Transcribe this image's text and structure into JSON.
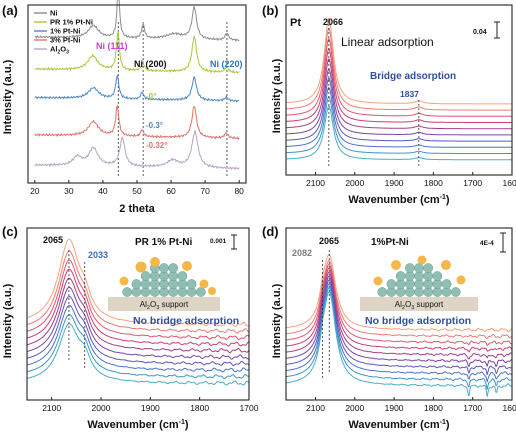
{
  "colors": {
    "ni": "#8c8c8c",
    "pr_pt_ni": "#a4c93a",
    "pt_ni_1": "#4a86c8",
    "pt_ni_3": "#e0726a",
    "al2o3": "#b8a2c6",
    "ni111_label": "#d23bd2",
    "ni220_label": "#2f74c0",
    "bridge_label": "#2f4f9c",
    "peak_label_grey": "#808080",
    "peak_label_blue": "#3a6fc0",
    "particle": "#f3b74a",
    "sphere": "#8fbfb2",
    "support": "#ded5c6",
    "ir_gradient": [
      "#f3a47f",
      "#f07b74",
      "#e0576d",
      "#cb3f73",
      "#a53e89",
      "#7c45a5",
      "#5a57bf",
      "#4c73c8",
      "#3d96c8",
      "#48afc5"
    ]
  },
  "chart_data": [
    {
      "panel": "(a)",
      "type": "line",
      "xlabel": "2 theta",
      "ylabel": "Intensity (a.u.)",
      "xlim": [
        18,
        82
      ],
      "xticks": [
        "20",
        "30",
        "40",
        "50",
        "60",
        "70",
        "80"
      ],
      "legend": [
        "Ni",
        "PR 1% Pt-Ni",
        "1% Pt-Ni",
        "3% Pt-Ni",
        "Al2O3"
      ],
      "legend_position": "top-left",
      "annotations": {
        "ni111": "Ni (111)",
        "ni200": "Ni (200)",
        "ni220": "Ni (220)",
        "shift_pr": "-0°",
        "shift_1": "-0.3°",
        "shift_3": "-0.32°"
      },
      "reference_lines_2theta": [
        44.5,
        51.8,
        76.4
      ],
      "series": [
        {
          "name": "Ni",
          "color_key": "ni",
          "baseline": 0.8,
          "peaks": [
            [
              37.2,
              0.07,
              1.8
            ],
            [
              44.5,
              0.28,
              0.45
            ],
            [
              51.8,
              0.08,
              0.5
            ],
            [
              61.0,
              0.03,
              3
            ],
            [
              66.8,
              0.18,
              0.8
            ],
            [
              76.4,
              0.04,
              0.6
            ]
          ]
        },
        {
          "name": "PR 1% Pt-Ni",
          "color_key": "pr_pt_ni",
          "baseline": 0.62,
          "peaks": [
            [
              37.0,
              0.08,
              1.8
            ],
            [
              44.4,
              0.22,
              0.5
            ],
            [
              51.7,
              0.05,
              0.5
            ],
            [
              66.8,
              0.2,
              0.8
            ],
            [
              76.3,
              0.03,
              0.6
            ]
          ]
        },
        {
          "name": "1% Pt-Ni",
          "color_key": "pt_ni_1",
          "baseline": 0.46,
          "peaks": [
            [
              37.2,
              0.06,
              1.8
            ],
            [
              44.2,
              0.13,
              0.55
            ],
            [
              51.5,
              0.04,
              0.5
            ],
            [
              66.8,
              0.13,
              0.8
            ],
            [
              76.2,
              0.02,
              0.6
            ]
          ]
        },
        {
          "name": "3% Pt-Ni",
          "color_key": "pt_ni_3",
          "baseline": 0.25,
          "peaks": [
            [
              37.2,
              0.08,
              1.8
            ],
            [
              44.2,
              0.17,
              0.55
            ],
            [
              51.5,
              0.04,
              0.5
            ],
            [
              66.8,
              0.18,
              0.8
            ],
            [
              76.2,
              0.03,
              0.6
            ]
          ]
        },
        {
          "name": "Al2O3",
          "color_key": "al2o3",
          "baseline": 0.08,
          "peaks": [
            [
              32.5,
              0.05,
              1.5
            ],
            [
              37.2,
              0.1,
              1.6
            ],
            [
              45.7,
              0.16,
              0.9
            ],
            [
              60.5,
              0.04,
              2
            ],
            [
              67.0,
              0.2,
              1.1
            ]
          ]
        }
      ]
    },
    {
      "panel": "(b)",
      "type": "line",
      "title": "Pt",
      "xlabel": "Wavenumber (cm-1)",
      "ylabel": "Intensity (a.u.)",
      "xlim": [
        2175,
        1600
      ],
      "xticks": [
        "2100",
        "2000",
        "1900",
        "1800",
        "1700",
        "1600"
      ],
      "scale_bar": "0.04",
      "annotations": {
        "linear": "Linear adsorption",
        "bridge": "Bridge adsorption",
        "peak_main": "2066",
        "peak_bridge": "1837"
      },
      "peak_main_cm": 2066,
      "peak_bridge_cm": 1837,
      "n_traces": 10,
      "main_peak_heights": [
        0.86,
        0.82,
        0.78,
        0.74,
        0.7,
        0.66,
        0.63,
        0.6,
        0.57,
        0.54
      ],
      "bridge_peak_heights": [
        0.03,
        0.03,
        0.028,
        0.026,
        0.025,
        0.024,
        0.023,
        0.022,
        0.021,
        0.02
      ]
    },
    {
      "panel": "(c)",
      "type": "line",
      "title": "PR 1% Pt-Ni",
      "xlabel": "Wavenumber (cm-1)",
      "ylabel": "Intensity (a.u.)",
      "xlim": [
        2150,
        1700
      ],
      "xticks": [
        "2100",
        "2000",
        "1900",
        "1800",
        "1700"
      ],
      "scale_bar": "0.001",
      "annotations": {
        "bridge": "No bridge adsorption",
        "peak_main": "2065",
        "peak_shoulder": "2033",
        "support": "Al2O3 support"
      },
      "peak_main_cm": 2065,
      "peak_shoulder_cm": 2033,
      "n_traces": 10,
      "main_peak_heights": [
        0.32,
        0.3,
        0.29,
        0.28,
        0.27,
        0.26,
        0.25,
        0.24,
        0.23,
        0.22
      ]
    },
    {
      "panel": "(d)",
      "type": "line",
      "title": "1%Pt-Ni",
      "xlabel": "Wavenumber (cm-1)",
      "ylabel": "Intensity (a.u.)",
      "xlim": [
        2175,
        1600
      ],
      "xticks": [
        "2100",
        "2000",
        "1900",
        "1800",
        "1700",
        "1600"
      ],
      "scale_bar": "4E-4",
      "annotations": {
        "bridge": "No bridge adsorption",
        "peak_main": "2065",
        "peak_minor": "2082",
        "support": "Al2O3 support"
      },
      "peak_main_cm": 2065,
      "peak_minor_cm": 2082,
      "n_traces": 10,
      "main_peak_heights": [
        0.32,
        0.32,
        0.33,
        0.34,
        0.35,
        0.36,
        0.37,
        0.38,
        0.39,
        0.4
      ]
    }
  ],
  "labels": {
    "panel_a": "(a)",
    "panel_b": "(b)",
    "panel_c": "(c)",
    "panel_d": "(d)",
    "xrd_xlabel": "2 theta",
    "ylabel_au": "Intensity (a.u.)",
    "wn_label": "Wavenumber (cm",
    "wn_sup": "-1",
    "wn_close": ")",
    "legend_ni": "Ni",
    "legend_pr": "PR 1% Pt-Ni",
    "legend_1": "1% Pt-Ni",
    "legend_3": "3% Pt-Ni",
    "legend_al_main": "Al",
    "legend_al_sub1": "2",
    "legend_al_mid": "O",
    "legend_al_sub2": "3",
    "support_main": "Al",
    "support_sub1": "2",
    "support_mid": "O",
    "support_sub2": "3",
    "support_tail": " support"
  }
}
